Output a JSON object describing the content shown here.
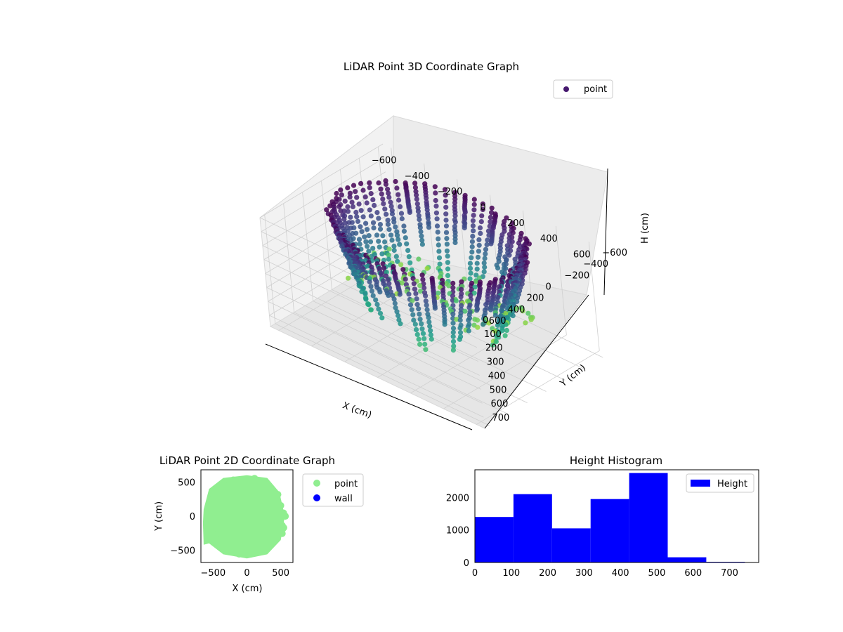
{
  "chart_data": [
    {
      "type": "scatter",
      "projection": "3d",
      "title": "LiDAR Point 3D Coordinate Graph",
      "xlabel": "X (cm)",
      "ylabel": "Y (cm)",
      "zlabel": "H (cm)",
      "xticks": [
        "−600",
        "−400",
        "−200",
        "0",
        "200",
        "400",
        "600"
      ],
      "yticks": [
        "−600",
        "−400",
        "−200",
        "0",
        "200",
        "400",
        "600"
      ],
      "zticks": [
        "0",
        "100",
        "200",
        "300",
        "400",
        "500",
        "600",
        "700"
      ],
      "xlim": [
        -650,
        650
      ],
      "ylim": [
        -650,
        650
      ],
      "zlim": [
        0,
        780
      ],
      "z_inverted": true,
      "grid": true,
      "legend": {
        "placement": "top-right",
        "entries": [
          "point"
        ]
      },
      "colormap": "viridis",
      "series": [
        {
          "name": "point",
          "note_shape": "ring-shaped wall of points around origin, radius about 520 cm, heights 0-650 cm, plus sparse floor points",
          "samples": [
            {
              "x": -520,
              "y": 0,
              "h": 120
            },
            {
              "x": -450,
              "y": 260,
              "h": 200
            },
            {
              "x": -260,
              "y": 450,
              "h": 150
            },
            {
              "x": 0,
              "y": 520,
              "h": 100
            },
            {
              "x": 260,
              "y": 450,
              "h": 180
            },
            {
              "x": 450,
              "y": 260,
              "h": 250
            },
            {
              "x": 520,
              "y": 0,
              "h": 300
            },
            {
              "x": 450,
              "y": -260,
              "h": 350
            },
            {
              "x": 260,
              "y": -450,
              "h": 400
            },
            {
              "x": 0,
              "y": -520,
              "h": 450
            },
            {
              "x": -260,
              "y": -450,
              "h": 500
            },
            {
              "x": -450,
              "y": -260,
              "h": 550
            },
            {
              "x": -300,
              "y": -500,
              "h": 650
            },
            {
              "x": -550,
              "y": -300,
              "h": 700
            },
            {
              "x": -100,
              "y": -600,
              "h": 720
            }
          ]
        }
      ]
    },
    {
      "type": "scatter",
      "title": "LiDAR Point 2D Coordinate Graph",
      "xlabel": "X (cm)",
      "ylabel": "Y (cm)",
      "xticks": [
        "−500",
        "0",
        "500"
      ],
      "yticks": [
        "500",
        "0",
        "−500"
      ],
      "xlim": [
        -680,
        680
      ],
      "ylim": [
        -680,
        680
      ],
      "legend": {
        "placement": "outside-right",
        "entries": [
          "point",
          "wall"
        ]
      },
      "colors": {
        "point": "#90ee90",
        "wall": "#0000ff"
      },
      "series": [
        {
          "name": "point",
          "note_shape": "filled disc of points, radius about 560 cm",
          "outline": [
            {
              "x": -640,
              "y": 100
            },
            {
              "x": -560,
              "y": 400
            },
            {
              "x": -350,
              "y": 560
            },
            {
              "x": 0,
              "y": 600
            },
            {
              "x": 300,
              "y": 560
            },
            {
              "x": 480,
              "y": 350
            },
            {
              "x": 560,
              "y": 0
            },
            {
              "x": 500,
              "y": -350
            },
            {
              "x": 300,
              "y": -560
            },
            {
              "x": 0,
              "y": -620
            },
            {
              "x": -350,
              "y": -560
            },
            {
              "x": -560,
              "y": -400
            },
            {
              "x": -640,
              "y": -420
            },
            {
              "x": -650,
              "y": -100
            }
          ]
        },
        {
          "name": "wall",
          "points": []
        }
      ]
    },
    {
      "type": "bar",
      "subtype": "histogram",
      "title": "Height Histogram",
      "xticks": [
        "0",
        "100",
        "200",
        "300",
        "400",
        "500",
        "600",
        "700"
      ],
      "yticks": [
        "0",
        "1000",
        "2000"
      ],
      "xlim": [
        0,
        780
      ],
      "ylim": [
        0,
        2850
      ],
      "legend": {
        "placement": "top-right",
        "entries": [
          "Height"
        ]
      },
      "color": "#0000ff",
      "bin_edges": [
        0,
        106,
        212,
        318,
        424,
        530,
        636,
        742,
        780
      ],
      "series": [
        {
          "name": "Height",
          "values": [
            1400,
            2100,
            1050,
            1950,
            2750,
            160,
            20,
            10
          ]
        }
      ]
    }
  ]
}
